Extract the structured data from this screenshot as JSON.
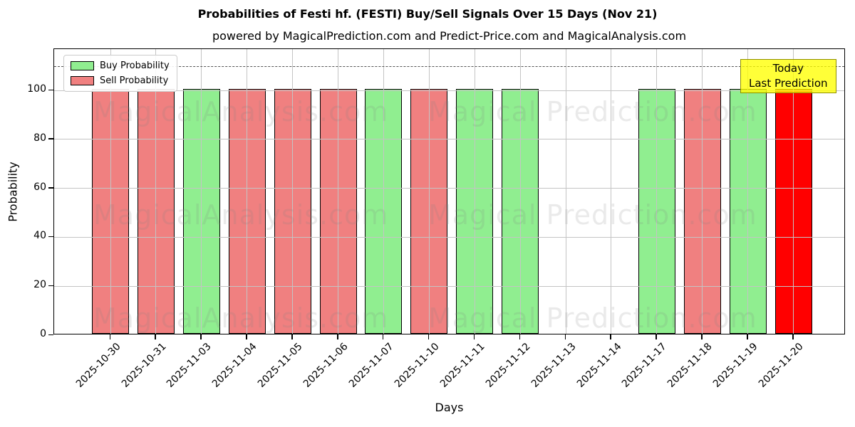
{
  "title": "Probabilities of Festi hf. (FESTI) Buy/Sell Signals Over 15 Days (Nov 21)",
  "subtitle": "powered by MagicalPrediction.com and Predict-Price.com and MagicalAnalysis.com",
  "axes": {
    "xlabel": "Days",
    "ylabel": "Probability",
    "yticks": [
      0,
      20,
      40,
      60,
      80,
      100
    ],
    "ylim": [
      0,
      116.9
    ],
    "threshold_y": 110,
    "grid": true
  },
  "legend": {
    "position": "upper-left",
    "items": [
      {
        "label": "Buy Probability",
        "color": "#90ee90"
      },
      {
        "label": "Sell Probability",
        "color": "#f08080"
      }
    ]
  },
  "annotation": {
    "line1": "Today",
    "line2": "Last Prediction",
    "bg_color": "#ffff00"
  },
  "watermarks": {
    "left_text": "MagicalAnalysis.com",
    "right_text": "Magical Prediction.com"
  },
  "colors": {
    "buy": "#90ee90",
    "sell": "#f08080",
    "today": "#ff0000",
    "edge": "#000000"
  },
  "chart_data": {
    "type": "bar",
    "title": "Probabilities of Festi hf. (FESTI) Buy/Sell Signals Over 15 Days (Nov 21)",
    "xlabel": "Days",
    "ylabel": "Probability",
    "ylim": [
      0,
      116.9
    ],
    "threshold_dashed_line": 110,
    "legend_position": "upper-left",
    "grid": true,
    "categories": [
      "2025-10-30",
      "2025-10-31",
      "2025-11-03",
      "2025-11-04",
      "2025-11-05",
      "2025-11-06",
      "2025-11-07",
      "2025-11-10",
      "2025-11-11",
      "2025-11-12",
      "2025-11-13",
      "2025-11-14",
      "2025-11-17",
      "2025-11-18",
      "2025-11-19",
      "2025-11-20"
    ],
    "bars": [
      {
        "date": "2025-10-30",
        "value": 100,
        "signal": "sell"
      },
      {
        "date": "2025-10-31",
        "value": 100,
        "signal": "sell"
      },
      {
        "date": "2025-11-03",
        "value": 100,
        "signal": "buy"
      },
      {
        "date": "2025-11-04",
        "value": 100,
        "signal": "sell"
      },
      {
        "date": "2025-11-05",
        "value": 100,
        "signal": "sell"
      },
      {
        "date": "2025-11-06",
        "value": 100,
        "signal": "sell"
      },
      {
        "date": "2025-11-07",
        "value": 100,
        "signal": "buy"
      },
      {
        "date": "2025-11-10",
        "value": 100,
        "signal": "sell"
      },
      {
        "date": "2025-11-11",
        "value": 100,
        "signal": "buy"
      },
      {
        "date": "2025-11-12",
        "value": 100,
        "signal": "buy"
      },
      {
        "date": "2025-11-13",
        "value": 0,
        "signal": "none"
      },
      {
        "date": "2025-11-14",
        "value": 0,
        "signal": "none"
      },
      {
        "date": "2025-11-17",
        "value": 100,
        "signal": "buy"
      },
      {
        "date": "2025-11-18",
        "value": 100,
        "signal": "sell"
      },
      {
        "date": "2025-11-19",
        "value": 100,
        "signal": "buy"
      },
      {
        "date": "2025-11-20",
        "value": 100,
        "signal": "today"
      }
    ],
    "series": [
      {
        "name": "Buy Probability",
        "color": "#90ee90",
        "values": [
          0,
          0,
          100,
          0,
          0,
          0,
          100,
          0,
          100,
          100,
          0,
          0,
          100,
          0,
          100,
          0
        ]
      },
      {
        "name": "Sell Probability",
        "color": "#f08080",
        "values": [
          100,
          100,
          0,
          100,
          100,
          100,
          0,
          100,
          0,
          0,
          0,
          0,
          0,
          100,
          0,
          0
        ]
      },
      {
        "name": "Today Last Prediction",
        "color": "#ff0000",
        "values": [
          0,
          0,
          0,
          0,
          0,
          0,
          0,
          0,
          0,
          0,
          0,
          0,
          0,
          0,
          0,
          100
        ]
      }
    ]
  }
}
